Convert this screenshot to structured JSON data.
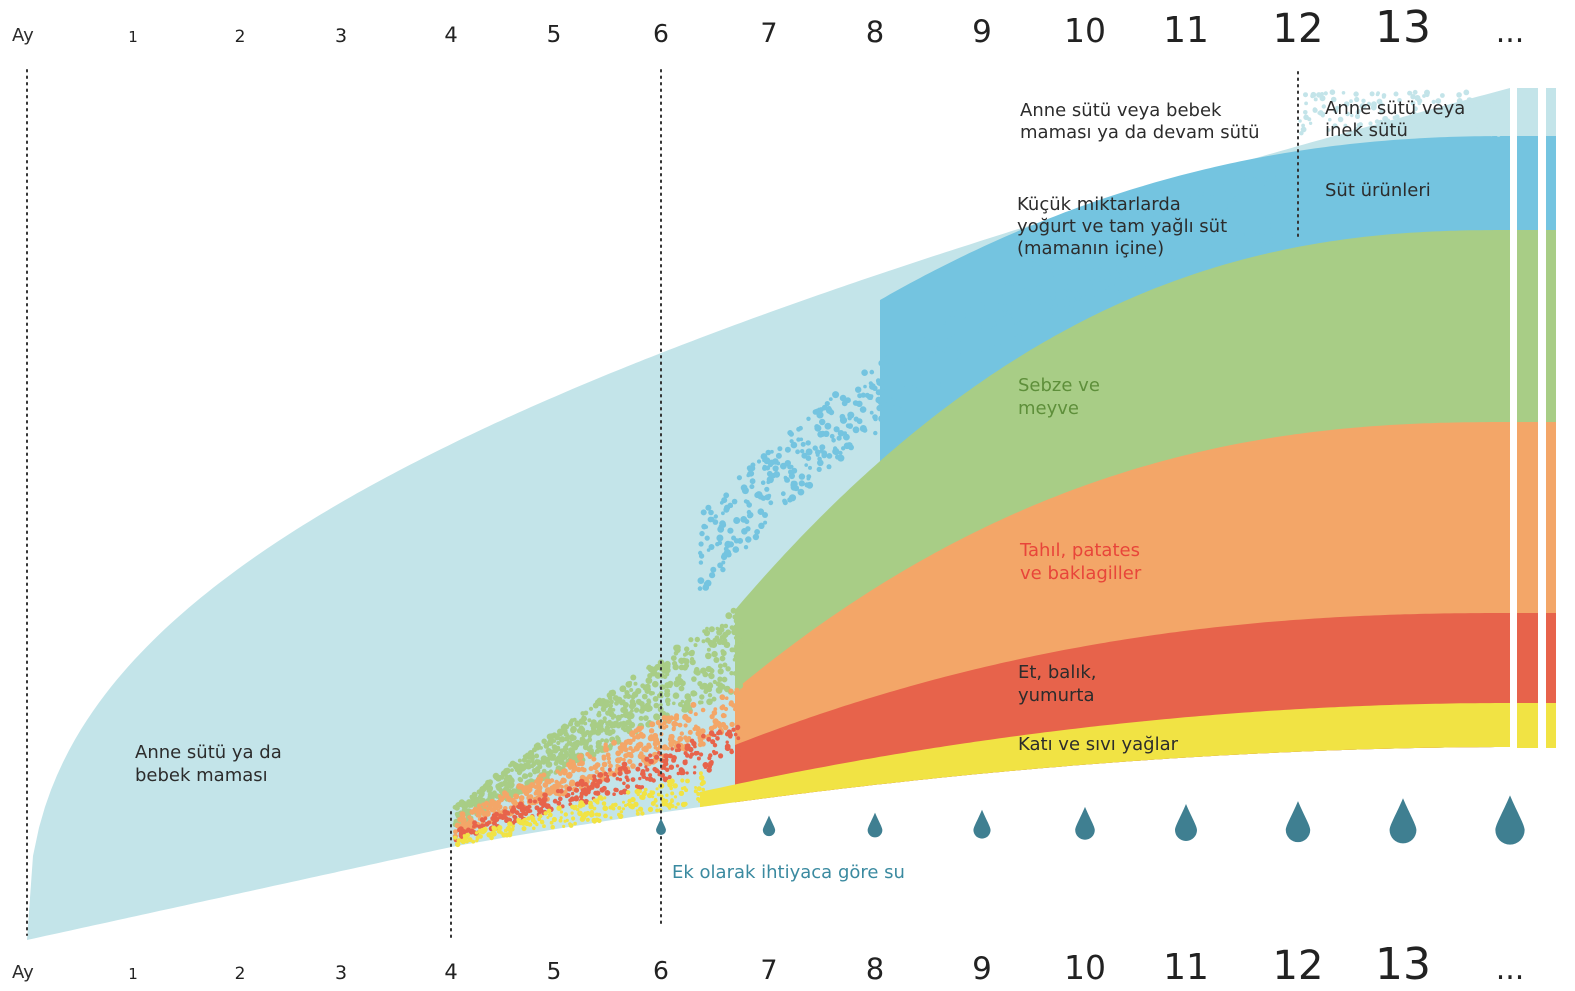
{
  "axis": {
    "unit_label": "Ay",
    "months": [
      "1",
      "2",
      "3",
      "4",
      "5",
      "6",
      "7",
      "8",
      "9",
      "10",
      "11",
      "12",
      "13",
      "..."
    ]
  },
  "labels": {
    "breastmilk_main": [
      "Anne sütü ya da",
      "bebek maması"
    ],
    "milk_top": [
      "Anne sütü veya bebek",
      "maması ya da devam sütü"
    ],
    "milk_after12": [
      "Anne sütü veya",
      "inek sütü"
    ],
    "yogurt": [
      "Küçük miktarlarda",
      "yoğurt ve tam yağlı süt",
      "(mamanın içine)"
    ],
    "dairy": "Süt ürünleri",
    "veg": [
      "Sebze ve",
      "meyve"
    ],
    "grain": [
      "Tahıl, patates",
      "ve baklagiller"
    ],
    "meat": [
      "Et, balık,",
      "yumurta"
    ],
    "oil": "Katı ve sıvı yağlar",
    "water": "Ek olarak ihtiyaca göre su"
  },
  "colors": {
    "milk": "#c3e4e9",
    "dairy": "#74c4e0",
    "veg": "#a8cd86",
    "grain": "#f3a668",
    "meat": "#e7634b",
    "oil": "#f1e344",
    "water": "#3f7f91",
    "text_dark": "#2c2c2c",
    "text_veg": "#5e8f3a",
    "text_grain": "#e8453a",
    "text_water": "#3a8aa0"
  },
  "markers": {
    "dotted_months": [
      0,
      4,
      6,
      12
    ]
  }
}
